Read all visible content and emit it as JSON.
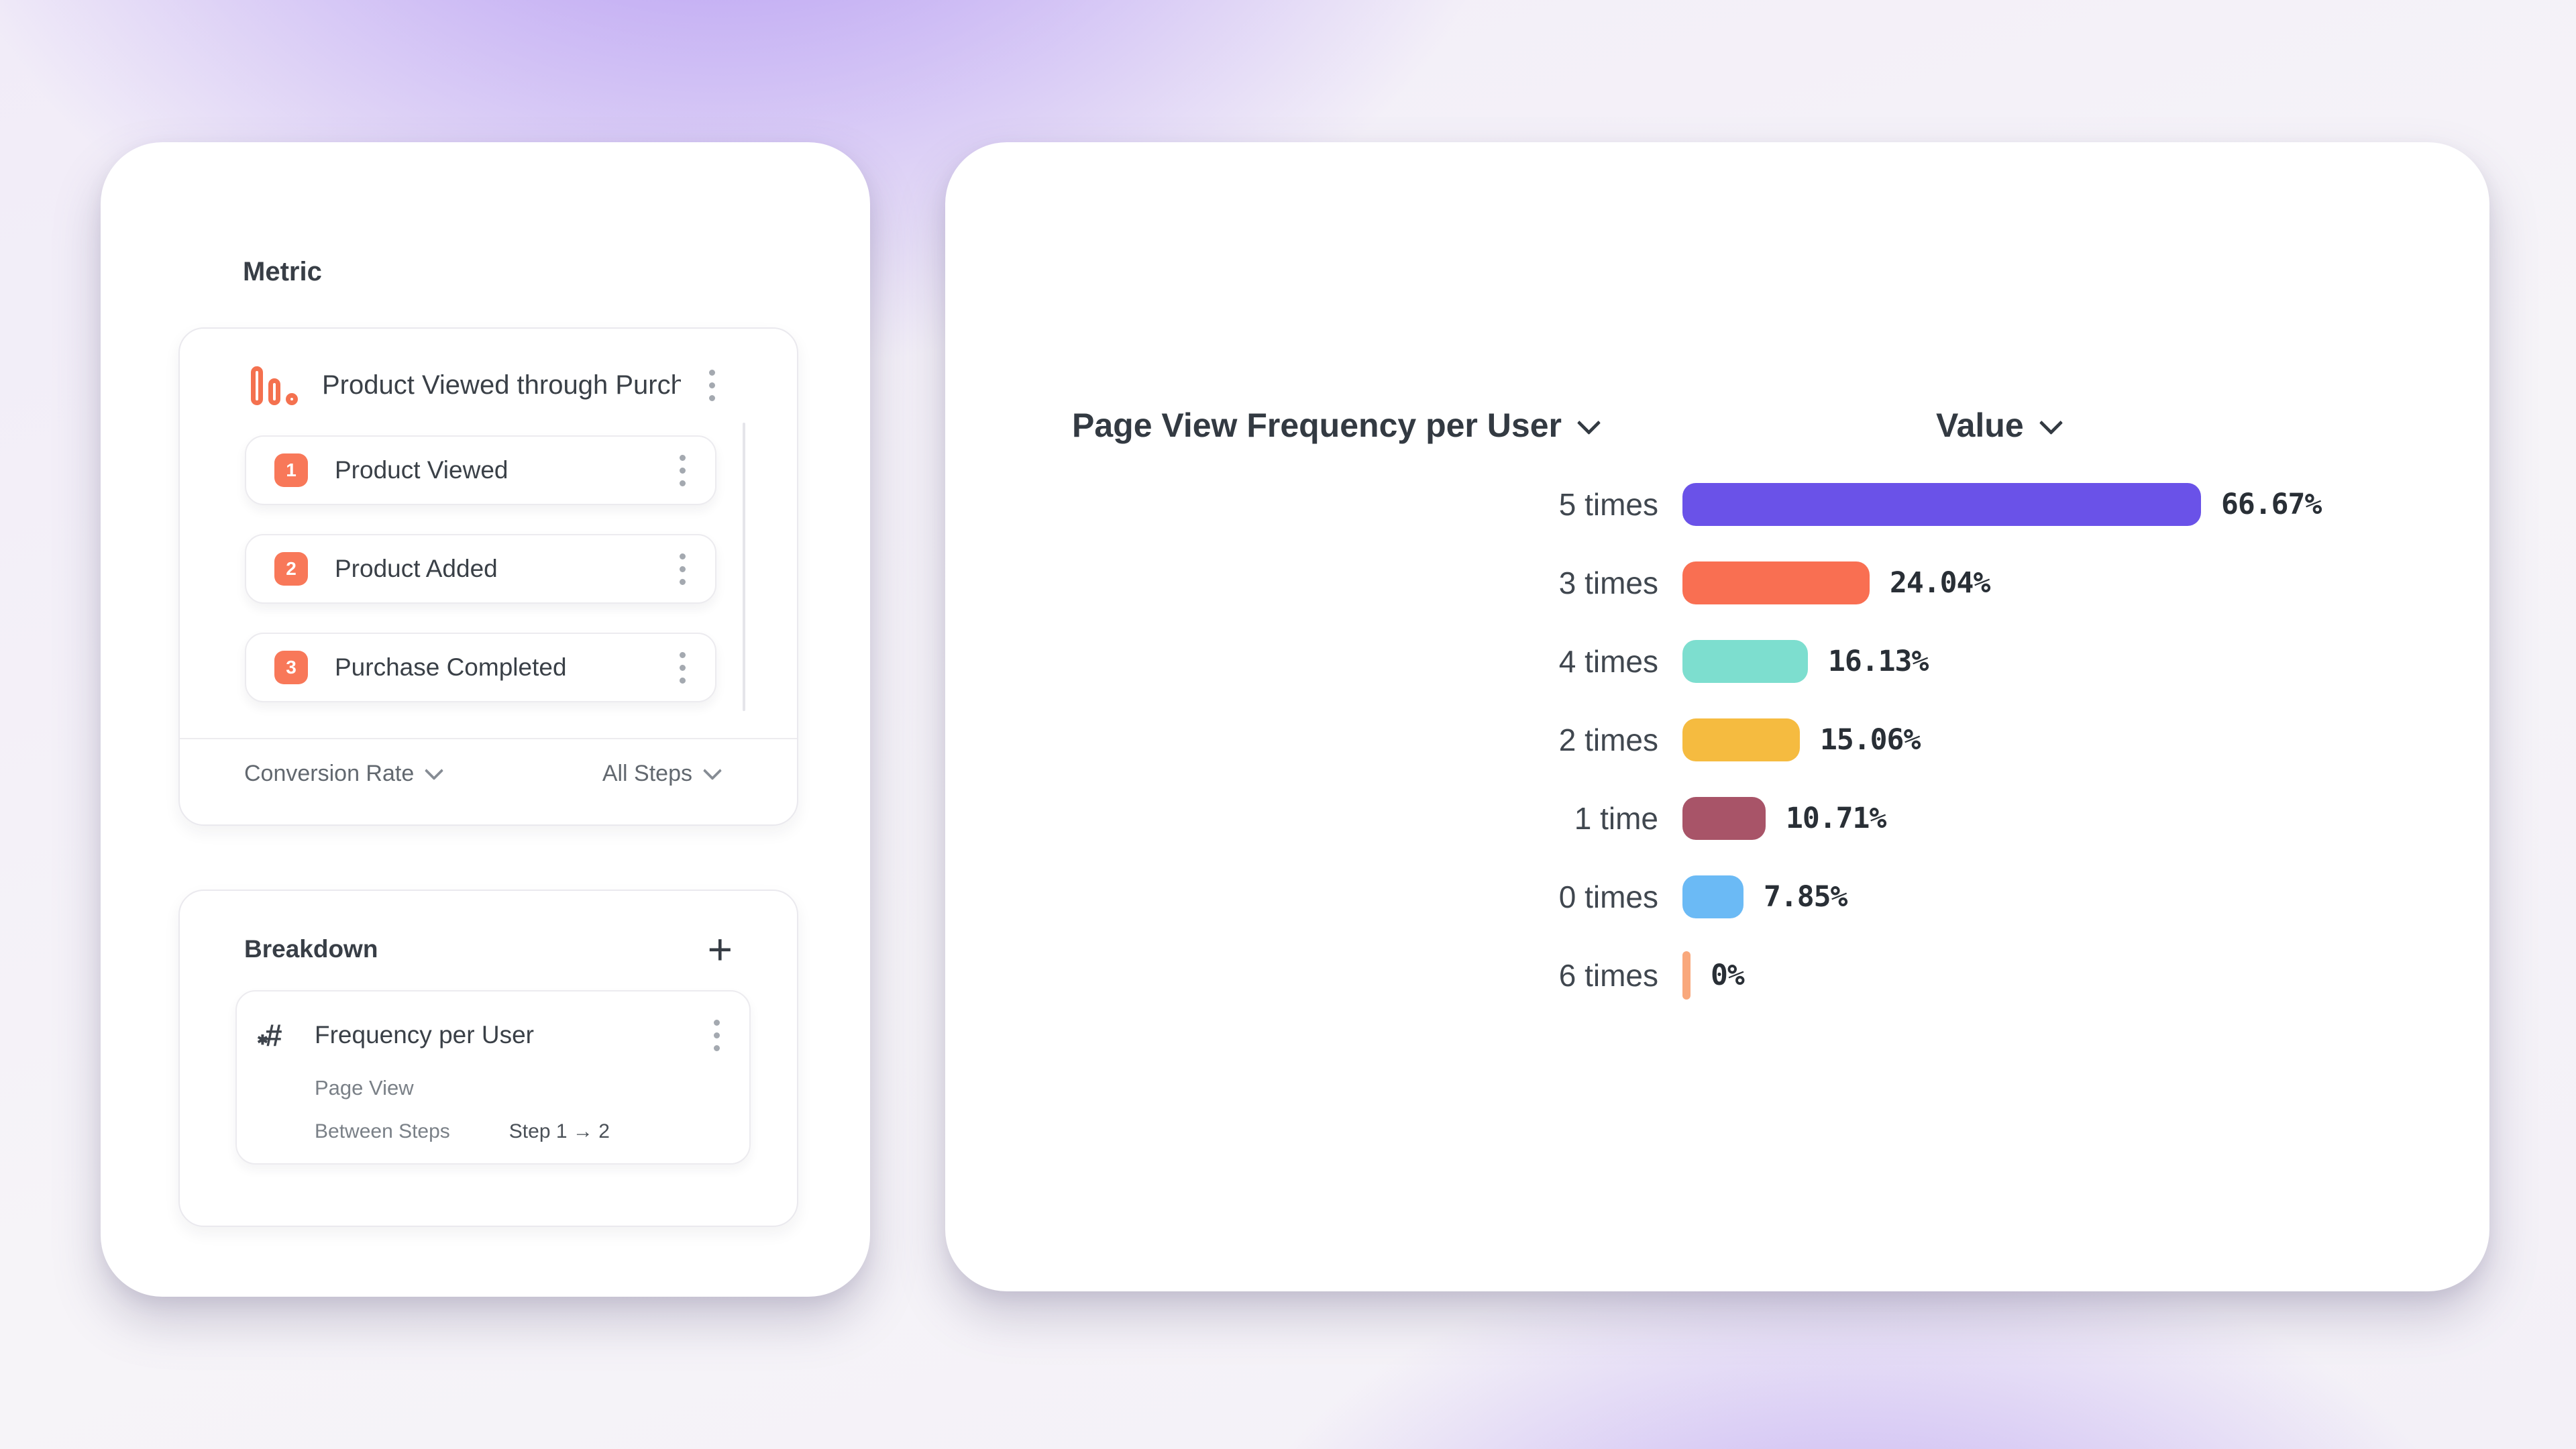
{
  "icons": {
    "plus": "+",
    "hash": "#",
    "star": "✱"
  },
  "left_panel": {
    "metric_section": {
      "title": "Metric",
      "funnel": {
        "name": "Product Viewed through Purch...",
        "icon": "funnel-bars-icon",
        "icon_color": "#F4714F",
        "steps": [
          {
            "number": "1",
            "label": "Product Viewed"
          },
          {
            "number": "2",
            "label": "Product Added"
          },
          {
            "number": "3",
            "label": "Purchase Completed"
          }
        ],
        "badge_color": "#F87859",
        "measurement_label": "Conversion Rate",
        "steps_scope_label": "All Steps"
      }
    },
    "breakdown_section": {
      "title": "Breakdown",
      "property": {
        "name": "Frequency per User",
        "event": "Page View",
        "between_steps_label": "Between Steps",
        "step_range": "Step 1 → 2"
      }
    }
  },
  "chart_panel": {
    "series_label": "Page View Frequency per User",
    "value_label": "Value"
  },
  "chart_data": {
    "type": "bar",
    "orientation": "horizontal",
    "title": "Page View Frequency per User",
    "value_header": "Value",
    "categories": [
      "5 times",
      "3 times",
      "4 times",
      "2 times",
      "1 time",
      "0 times",
      "6 times"
    ],
    "values": [
      66.67,
      24.04,
      16.13,
      15.06,
      10.71,
      7.85,
      0
    ],
    "value_labels": [
      "66.67%",
      "24.04%",
      "16.13%",
      "15.06%",
      "10.71%",
      "7.85%",
      "0%"
    ],
    "bar_colors": [
      "#6A52E8",
      "#F96F52",
      "#7DDECF",
      "#F5BB40",
      "#A85468",
      "#6BBAF5",
      "#F9A87C"
    ],
    "unit": "%",
    "xlim": [
      0,
      100
    ],
    "grid": false,
    "legend": false
  }
}
